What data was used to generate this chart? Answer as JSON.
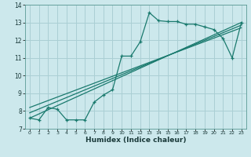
{
  "xlabel": "Humidex (Indice chaleur)",
  "bg_color": "#cce8ec",
  "grid_color": "#aacfd4",
  "line_color": "#1a7a6e",
  "xlim": [
    -0.5,
    23.5
  ],
  "ylim": [
    7,
    14
  ],
  "xticks": [
    0,
    1,
    2,
    3,
    4,
    5,
    6,
    7,
    8,
    9,
    10,
    11,
    12,
    13,
    14,
    15,
    16,
    17,
    18,
    19,
    20,
    21,
    22,
    23
  ],
  "yticks": [
    7,
    8,
    9,
    10,
    11,
    12,
    13,
    14
  ],
  "series1_x": [
    0,
    1,
    2,
    3,
    4,
    5,
    6,
    7,
    8,
    9,
    10,
    11,
    12,
    13,
    14,
    15,
    16,
    17,
    18,
    19,
    20,
    21,
    22,
    23
  ],
  "series1_y": [
    7.6,
    7.5,
    8.2,
    8.1,
    7.5,
    7.5,
    7.5,
    8.5,
    8.9,
    9.2,
    11.1,
    11.1,
    11.9,
    13.55,
    13.1,
    13.05,
    13.05,
    12.9,
    12.9,
    12.75,
    12.6,
    12.1,
    11.0,
    13.0
  ],
  "series2_x": [
    0,
    23
  ],
  "series2_y": [
    7.6,
    13.0
  ],
  "series3_x": [
    0,
    23
  ],
  "series3_y": [
    7.9,
    12.85
  ],
  "series4_x": [
    0,
    23
  ],
  "series4_y": [
    8.2,
    12.7
  ]
}
